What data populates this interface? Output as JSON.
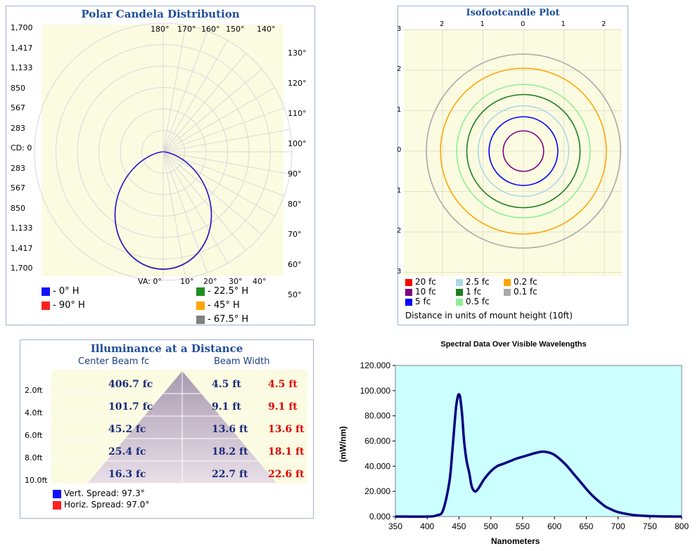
{
  "polar": {
    "title": "Polar Candela Distribution",
    "cd_labels": [
      "1,700",
      "1,417",
      "1,133",
      "850",
      "567",
      "283",
      "CD: 0",
      "283",
      "567",
      "850",
      "1,133",
      "1,417",
      "1,700"
    ],
    "top_angles": [
      "180°",
      "170°",
      "160°",
      "150°",
      "140°"
    ],
    "right_angles": [
      "130°",
      "120°",
      "110°",
      "100°",
      "90°",
      "80°",
      "70°",
      "60°",
      "50°"
    ],
    "bottom_angles": [
      "VA: 0°",
      "10°",
      "20°",
      "30°",
      "40°"
    ],
    "legend": [
      {
        "label": "- 0° H",
        "color": "#1010ff"
      },
      {
        "label": "- 90° H",
        "color": "#ff2020"
      },
      {
        "label": "- 22.5° H",
        "color": "#1e8c1e"
      },
      {
        "label": "- 45° H",
        "color": "#ffa500"
      },
      {
        "label": "- 67.5° H",
        "color": "#808080"
      }
    ]
  },
  "iso": {
    "title": "Isofootcandle Plot",
    "top_ticks": [
      "2",
      "1",
      "0",
      "1",
      "2"
    ],
    "left_ticks": [
      "3",
      "2",
      "1",
      "0",
      "1",
      "2",
      "3"
    ],
    "legend": [
      {
        "label": "20 fc",
        "color": "#ff0000"
      },
      {
        "label": "2.5 fc",
        "color": "#add8e6"
      },
      {
        "label": "0.2 fc",
        "color": "#ffa500"
      },
      {
        "label": "10 fc",
        "color": "#800080"
      },
      {
        "label": "1 fc",
        "color": "#1e7e1e"
      },
      {
        "label": "0.1 fc",
        "color": "#a9a9a9"
      },
      {
        "label": "5 fc",
        "color": "#0000ff"
      },
      {
        "label": "0.5 fc",
        "color": "#90ee90"
      }
    ],
    "footer": "Distance in units of mount height (10ft)"
  },
  "illum": {
    "title": "Illuminance at a Distance",
    "col1": "Center Beam fc",
    "col2": "Beam Width",
    "rows": [
      {
        "dist": "2.0ft",
        "fc": "406.7 fc",
        "v": "4.5 ft",
        "h": "4.5 ft"
      },
      {
        "dist": "4.0ft",
        "fc": "101.7 fc",
        "v": "9.1 ft",
        "h": "9.1 ft"
      },
      {
        "dist": "6.0ft",
        "fc": "45.2 fc",
        "v": "13.6 ft",
        "h": "13.6 ft"
      },
      {
        "dist": "8.0ft",
        "fc": "25.4 fc",
        "v": "18.2 ft",
        "h": "18.1 ft"
      },
      {
        "dist": "10.0ft",
        "fc": "16.3 fc",
        "v": "22.7 ft",
        "h": "22.6 ft"
      }
    ],
    "legend": [
      {
        "label": "Vert. Spread: 97.3°",
        "color": "#1010ff"
      },
      {
        "label": "Horiz. Spread: 97.0°",
        "color": "#ff2020"
      }
    ]
  },
  "chart_data": {
    "type": "line",
    "title": "Spectral Data Over Visible Wavelengths",
    "xlabel": "Nanometers",
    "ylabel": "(mW/nm)",
    "xlim": [
      350,
      800
    ],
    "ylim": [
      0,
      120
    ],
    "x_ticks": [
      "350",
      "400",
      "450",
      "500",
      "550",
      "600",
      "650",
      "700",
      "750",
      "800"
    ],
    "y_ticks": [
      "0.000",
      "20.000",
      "40.000",
      "60.000",
      "80.000",
      "100.000",
      "120.000"
    ],
    "line_color": "#000080",
    "plot_bg": "#ccffff",
    "series": [
      {
        "x": [
          350,
          400,
          415,
          425,
          435,
          440,
          445,
          448,
          450,
          452,
          455,
          458,
          462,
          466,
          470,
          475,
          480,
          485,
          490,
          500,
          510,
          520,
          530,
          540,
          550,
          560,
          570,
          580,
          590,
          600,
          610,
          620,
          630,
          640,
          650,
          660,
          670,
          680,
          690,
          700,
          720,
          740,
          760,
          780,
          800
        ],
        "values": [
          0,
          0,
          1,
          5,
          28,
          55,
          85,
          95,
          97,
          94,
          80,
          60,
          44,
          35,
          24,
          20,
          22,
          26,
          30,
          36,
          40,
          42,
          44,
          46,
          47.5,
          49,
          50.5,
          51.5,
          51,
          49,
          45,
          40,
          34,
          28,
          22,
          16.5,
          12,
          8,
          5.5,
          3.5,
          1.5,
          0.6,
          0.2,
          0.05,
          0
        ]
      }
    ]
  }
}
